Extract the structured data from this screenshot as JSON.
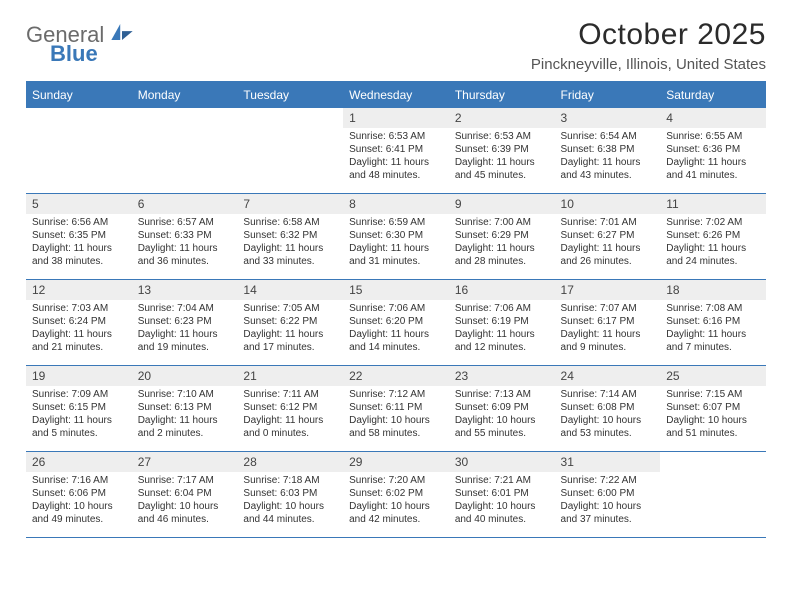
{
  "brand": {
    "line1": "General",
    "line2": "Blue"
  },
  "title": "October 2025",
  "location": "Pinckneyville, Illinois, United States",
  "colors": {
    "header_bg": "#3a78b8",
    "header_text": "#ffffff",
    "daynum_bg": "#eeeeee",
    "border": "#3a78b8",
    "body_text": "#333333"
  },
  "daysOfWeek": [
    "Sunday",
    "Monday",
    "Tuesday",
    "Wednesday",
    "Thursday",
    "Friday",
    "Saturday"
  ],
  "weeks": [
    [
      {
        "n": "",
        "sunrise": "",
        "sunset": "",
        "daylight": ""
      },
      {
        "n": "",
        "sunrise": "",
        "sunset": "",
        "daylight": ""
      },
      {
        "n": "",
        "sunrise": "",
        "sunset": "",
        "daylight": ""
      },
      {
        "n": "1",
        "sunrise": "Sunrise: 6:53 AM",
        "sunset": "Sunset: 6:41 PM",
        "daylight": "Daylight: 11 hours and 48 minutes."
      },
      {
        "n": "2",
        "sunrise": "Sunrise: 6:53 AM",
        "sunset": "Sunset: 6:39 PM",
        "daylight": "Daylight: 11 hours and 45 minutes."
      },
      {
        "n": "3",
        "sunrise": "Sunrise: 6:54 AM",
        "sunset": "Sunset: 6:38 PM",
        "daylight": "Daylight: 11 hours and 43 minutes."
      },
      {
        "n": "4",
        "sunrise": "Sunrise: 6:55 AM",
        "sunset": "Sunset: 6:36 PM",
        "daylight": "Daylight: 11 hours and 41 minutes."
      }
    ],
    [
      {
        "n": "5",
        "sunrise": "Sunrise: 6:56 AM",
        "sunset": "Sunset: 6:35 PM",
        "daylight": "Daylight: 11 hours and 38 minutes."
      },
      {
        "n": "6",
        "sunrise": "Sunrise: 6:57 AM",
        "sunset": "Sunset: 6:33 PM",
        "daylight": "Daylight: 11 hours and 36 minutes."
      },
      {
        "n": "7",
        "sunrise": "Sunrise: 6:58 AM",
        "sunset": "Sunset: 6:32 PM",
        "daylight": "Daylight: 11 hours and 33 minutes."
      },
      {
        "n": "8",
        "sunrise": "Sunrise: 6:59 AM",
        "sunset": "Sunset: 6:30 PM",
        "daylight": "Daylight: 11 hours and 31 minutes."
      },
      {
        "n": "9",
        "sunrise": "Sunrise: 7:00 AM",
        "sunset": "Sunset: 6:29 PM",
        "daylight": "Daylight: 11 hours and 28 minutes."
      },
      {
        "n": "10",
        "sunrise": "Sunrise: 7:01 AM",
        "sunset": "Sunset: 6:27 PM",
        "daylight": "Daylight: 11 hours and 26 minutes."
      },
      {
        "n": "11",
        "sunrise": "Sunrise: 7:02 AM",
        "sunset": "Sunset: 6:26 PM",
        "daylight": "Daylight: 11 hours and 24 minutes."
      }
    ],
    [
      {
        "n": "12",
        "sunrise": "Sunrise: 7:03 AM",
        "sunset": "Sunset: 6:24 PM",
        "daylight": "Daylight: 11 hours and 21 minutes."
      },
      {
        "n": "13",
        "sunrise": "Sunrise: 7:04 AM",
        "sunset": "Sunset: 6:23 PM",
        "daylight": "Daylight: 11 hours and 19 minutes."
      },
      {
        "n": "14",
        "sunrise": "Sunrise: 7:05 AM",
        "sunset": "Sunset: 6:22 PM",
        "daylight": "Daylight: 11 hours and 17 minutes."
      },
      {
        "n": "15",
        "sunrise": "Sunrise: 7:06 AM",
        "sunset": "Sunset: 6:20 PM",
        "daylight": "Daylight: 11 hours and 14 minutes."
      },
      {
        "n": "16",
        "sunrise": "Sunrise: 7:06 AM",
        "sunset": "Sunset: 6:19 PM",
        "daylight": "Daylight: 11 hours and 12 minutes."
      },
      {
        "n": "17",
        "sunrise": "Sunrise: 7:07 AM",
        "sunset": "Sunset: 6:17 PM",
        "daylight": "Daylight: 11 hours and 9 minutes."
      },
      {
        "n": "18",
        "sunrise": "Sunrise: 7:08 AM",
        "sunset": "Sunset: 6:16 PM",
        "daylight": "Daylight: 11 hours and 7 minutes."
      }
    ],
    [
      {
        "n": "19",
        "sunrise": "Sunrise: 7:09 AM",
        "sunset": "Sunset: 6:15 PM",
        "daylight": "Daylight: 11 hours and 5 minutes."
      },
      {
        "n": "20",
        "sunrise": "Sunrise: 7:10 AM",
        "sunset": "Sunset: 6:13 PM",
        "daylight": "Daylight: 11 hours and 2 minutes."
      },
      {
        "n": "21",
        "sunrise": "Sunrise: 7:11 AM",
        "sunset": "Sunset: 6:12 PM",
        "daylight": "Daylight: 11 hours and 0 minutes."
      },
      {
        "n": "22",
        "sunrise": "Sunrise: 7:12 AM",
        "sunset": "Sunset: 6:11 PM",
        "daylight": "Daylight: 10 hours and 58 minutes."
      },
      {
        "n": "23",
        "sunrise": "Sunrise: 7:13 AM",
        "sunset": "Sunset: 6:09 PM",
        "daylight": "Daylight: 10 hours and 55 minutes."
      },
      {
        "n": "24",
        "sunrise": "Sunrise: 7:14 AM",
        "sunset": "Sunset: 6:08 PM",
        "daylight": "Daylight: 10 hours and 53 minutes."
      },
      {
        "n": "25",
        "sunrise": "Sunrise: 7:15 AM",
        "sunset": "Sunset: 6:07 PM",
        "daylight": "Daylight: 10 hours and 51 minutes."
      }
    ],
    [
      {
        "n": "26",
        "sunrise": "Sunrise: 7:16 AM",
        "sunset": "Sunset: 6:06 PM",
        "daylight": "Daylight: 10 hours and 49 minutes."
      },
      {
        "n": "27",
        "sunrise": "Sunrise: 7:17 AM",
        "sunset": "Sunset: 6:04 PM",
        "daylight": "Daylight: 10 hours and 46 minutes."
      },
      {
        "n": "28",
        "sunrise": "Sunrise: 7:18 AM",
        "sunset": "Sunset: 6:03 PM",
        "daylight": "Daylight: 10 hours and 44 minutes."
      },
      {
        "n": "29",
        "sunrise": "Sunrise: 7:20 AM",
        "sunset": "Sunset: 6:02 PM",
        "daylight": "Daylight: 10 hours and 42 minutes."
      },
      {
        "n": "30",
        "sunrise": "Sunrise: 7:21 AM",
        "sunset": "Sunset: 6:01 PM",
        "daylight": "Daylight: 10 hours and 40 minutes."
      },
      {
        "n": "31",
        "sunrise": "Sunrise: 7:22 AM",
        "sunset": "Sunset: 6:00 PM",
        "daylight": "Daylight: 10 hours and 37 minutes."
      },
      {
        "n": "",
        "sunrise": "",
        "sunset": "",
        "daylight": ""
      }
    ]
  ]
}
